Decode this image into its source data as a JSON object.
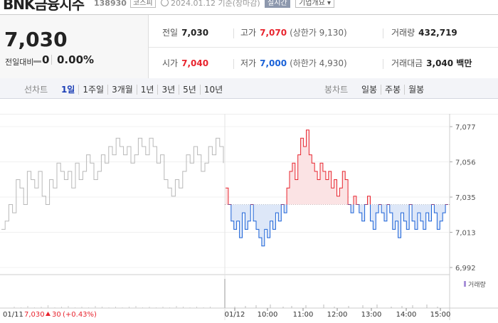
{
  "header": {
    "company_name": "BNK금융지주",
    "code": "138930",
    "market": "코스피",
    "date_basis": "2024.01.12 기준(장마감)",
    "realtime": "실시간",
    "overview": "기업개요"
  },
  "summary": {
    "price": "7,030",
    "change_label": "전일대비",
    "change_value": "0",
    "change_pct": "0.00%"
  },
  "stats": {
    "prev_close": {
      "label": "전일",
      "value": "7,030"
    },
    "high": {
      "label": "고가",
      "value": "7,070",
      "sub": "(상한가 9,130)"
    },
    "volume": {
      "label": "거래량",
      "value": "432,719"
    },
    "open": {
      "label": "시가",
      "value": "7,040"
    },
    "low": {
      "label": "저가",
      "value": "7,000",
      "sub": "(하한가 4,930)"
    },
    "amount": {
      "label": "거래대금",
      "value": "3,040 백만"
    }
  },
  "tabs": {
    "line_label": "선차트",
    "line": [
      "1일",
      "1주일",
      "3개월",
      "1년",
      "3년",
      "5년",
      "10년"
    ],
    "line_active": 0,
    "candle_label": "봉차트",
    "candle": [
      "일봉",
      "주봉",
      "월봉"
    ]
  },
  "chart_data": {
    "type": "line",
    "y_ticks": [
      "7,077",
      "7,056",
      "7,035",
      "7,013",
      "6,992"
    ],
    "ylim": [
      6992,
      7077
    ],
    "baseline": 7030,
    "x_ticks": [
      "01/11",
      "01/12",
      "10:00",
      "11:00",
      "12:00",
      "13:00",
      "14:00",
      "15:00"
    ],
    "volume_label": "거래량",
    "prev_day_label": "01/11",
    "prev_day_close": "7,030",
    "prev_day_change": "30",
    "prev_day_change_pct": "(+0.43%)",
    "colors": {
      "up": "#e8242e",
      "down": "#1a62d8",
      "prev": "#b8b8b8",
      "up_fill": "#fbe3e4",
      "down_fill": "#dde7f8"
    },
    "series": [
      {
        "values": [
          7015,
          7020,
          7030,
          7025,
          7045,
          7040,
          7030,
          7050,
          7045,
          7040,
          7050,
          7035,
          7030,
          7045,
          7040,
          7055,
          7050,
          7045,
          7050,
          7040,
          7055,
          7045,
          7050,
          7060,
          7055,
          7045,
          7050,
          7060,
          7055,
          7065,
          7060,
          7070,
          7065,
          7060,
          7065,
          7055,
          7060,
          7070,
          7065,
          7060,
          7070,
          7065,
          7055,
          7060,
          7045,
          7040,
          7035,
          7045,
          7040,
          7050,
          7060,
          7055,
          7065,
          7060,
          7050,
          7055,
          7065,
          7060,
          7070,
          7065,
          7055
        ]
      },
      {
        "values": [
          7040,
          7030,
          7020,
          7015,
          7020,
          7010,
          7025,
          7015,
          7020,
          7030,
          7020,
          7015,
          7010,
          7005,
          7015,
          7010,
          7020,
          7015,
          7025,
          7020,
          7030,
          7025,
          7040,
          7050,
          7055,
          7045,
          7060,
          7070,
          7065,
          7075,
          7060,
          7055,
          7050,
          7045,
          7055,
          7050,
          7045,
          7050,
          7040,
          7045,
          7035,
          7040,
          7050,
          7045,
          7030,
          7025,
          7035,
          7030,
          7025,
          7020,
          7030,
          7035,
          7020,
          7015,
          7025,
          7030,
          7025,
          7020,
          7030,
          7025,
          7015,
          7020,
          7010,
          7025,
          7020,
          7015,
          7030,
          7020,
          7015,
          7025,
          7020,
          7015,
          7025,
          7020,
          7030,
          7025,
          7015,
          7020,
          7025,
          7030,
          7030
        ]
      }
    ]
  }
}
